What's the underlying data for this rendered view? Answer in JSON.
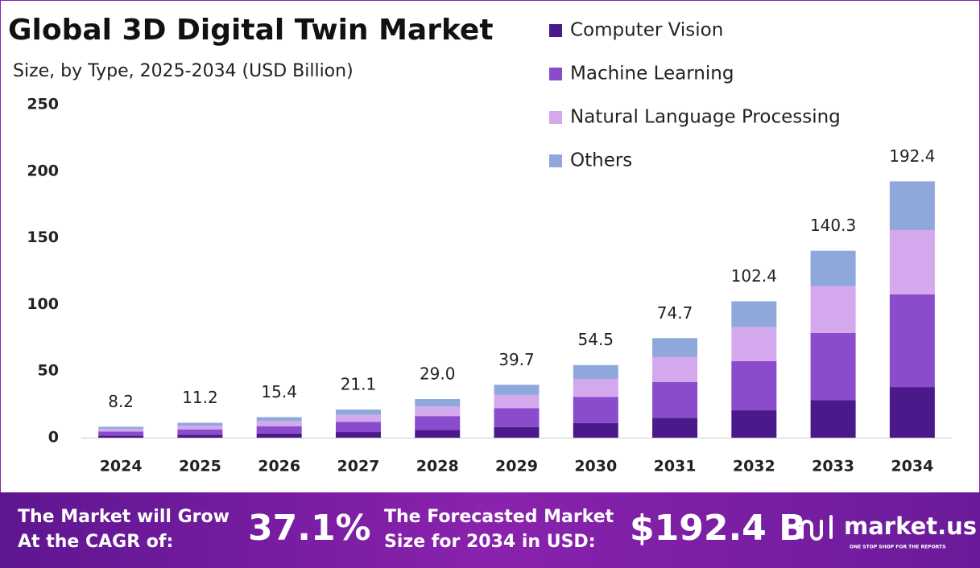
{
  "chart_data": {
    "type": "stacked-bar",
    "title": "Global 3D Digital Twin Market",
    "subtitle": "Size, by Type, 2025-2034 (USD Billion)",
    "categories": [
      "2024",
      "2025",
      "2026",
      "2027",
      "2028",
      "2029",
      "2030",
      "2031",
      "2032",
      "2033",
      "2034"
    ],
    "series": [
      {
        "name": "Computer Vision",
        "color": "#4b1a8a",
        "values": [
          1.6,
          2.2,
          3.1,
          4.2,
          5.8,
          7.9,
          10.9,
          14.9,
          20.5,
          28.1,
          38.0
        ]
      },
      {
        "name": "Machine Learning",
        "color": "#8a4ccc",
        "values": [
          3.0,
          4.0,
          5.5,
          7.6,
          10.4,
          14.3,
          19.6,
          26.9,
          36.9,
          50.5,
          69.5
        ]
      },
      {
        "name": "Natural Language Processing",
        "color": "#d4a8ec",
        "values": [
          2.1,
          2.8,
          3.9,
          5.3,
          7.3,
          9.9,
          13.6,
          18.7,
          25.6,
          35.1,
          48.3
        ]
      },
      {
        "name": "Others",
        "color": "#8fa8dc",
        "values": [
          1.5,
          2.2,
          2.9,
          4.0,
          5.5,
          7.6,
          10.4,
          14.2,
          19.4,
          26.6,
          36.6
        ]
      }
    ],
    "totals": [
      8.2,
      11.2,
      15.4,
      21.1,
      29.0,
      39.7,
      54.5,
      74.7,
      102.4,
      140.3,
      192.4
    ],
    "total_labels": [
      "8.2",
      "11.2",
      "15.4",
      "21.1",
      "29.0",
      "39.7",
      "54.5",
      "74.7",
      "102.4",
      "140.3",
      "192.4"
    ],
    "ylim": [
      0,
      250
    ],
    "yticks": [
      0,
      50,
      100,
      150,
      200,
      250
    ],
    "grid": false,
    "legend": "top-right"
  },
  "footer": {
    "cagr_text": [
      "The Market will Grow",
      "At the CAGR of:"
    ],
    "cagr_value": "37.1%",
    "forecast_text": [
      "The Forecasted Market",
      "Size for 2034 in USD:"
    ],
    "forecast_value": "$192.4 B",
    "brand": "market.us",
    "tagline": "ONE STOP SHOP FOR THE REPORTS"
  }
}
